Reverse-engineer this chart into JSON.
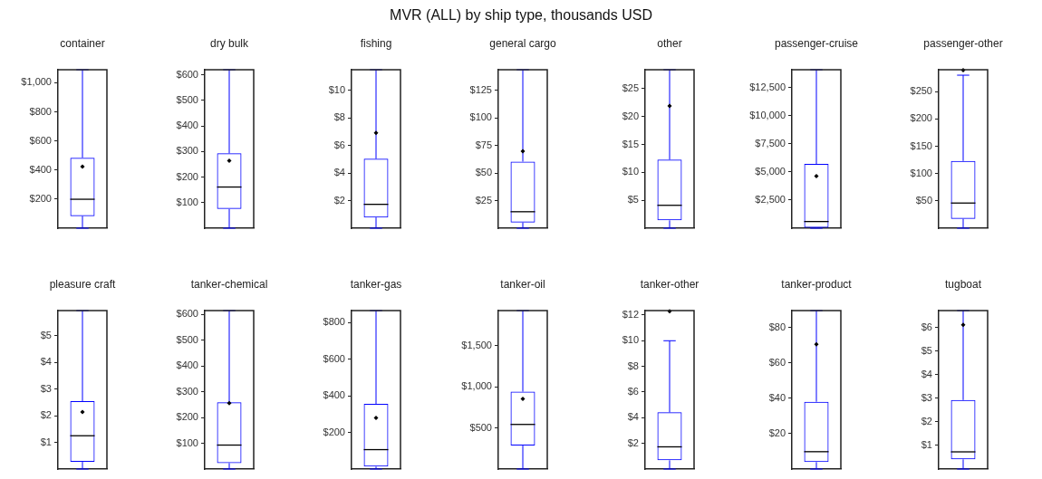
{
  "chart_data": [
    {
      "type": "box",
      "title": "container",
      "annotations": [
        "MVR (ALL) by ship type, thousands USD"
      ],
      "categories": [
        null
      ],
      "tick_labels": "y",
      "color": "#0000ff",
      "boxes": [
        {
          "low": 0,
          "q1": 83,
          "median": 199,
          "q3": 485,
          "high": 1090,
          "mean": 424
        }
      ],
      "ylim": [
        0,
        1090
      ],
      "yticks": [
        {
          "value": 200,
          "label": "$200"
        },
        {
          "value": 400,
          "label": "$400"
        },
        {
          "value": 600,
          "label": "$600"
        },
        {
          "value": 800,
          "label": "$800"
        },
        {
          "value": 1000,
          "label": "$1,000"
        }
      ]
    },
    {
      "type": "box",
      "title": "dry bulk",
      "categories": [
        null
      ],
      "tick_labels": "y",
      "color": "#0000ff",
      "boxes": [
        {
          "low": 0,
          "q1": 75,
          "median": 161,
          "q3": 293,
          "high": 620,
          "mean": 264
        }
      ],
      "ylim": [
        0,
        620
      ],
      "yticks": [
        {
          "value": 100,
          "label": "$100"
        },
        {
          "value": 200,
          "label": "$200"
        },
        {
          "value": 300,
          "label": "$300"
        },
        {
          "value": 400,
          "label": "$400"
        },
        {
          "value": 500,
          "label": "$500"
        },
        {
          "value": 600,
          "label": "$600"
        }
      ]
    },
    {
      "type": "box",
      "title": "fishing",
      "categories": [
        null
      ],
      "tick_labels": "y",
      "color": "#0000ff",
      "boxes": [
        {
          "low": 0,
          "q1": 0.78,
          "median": 1.73,
          "q3": 5.04,
          "high": 11.5,
          "mean": 6.92
        }
      ],
      "ylim": [
        0,
        11.5
      ],
      "yticks": [
        {
          "value": 2,
          "label": "$2"
        },
        {
          "value": 4,
          "label": "$4"
        },
        {
          "value": 6,
          "label": "$6"
        },
        {
          "value": 8,
          "label": "$8"
        },
        {
          "value": 10,
          "label": "$10"
        }
      ]
    },
    {
      "type": "box",
      "title": "general cargo",
      "categories": [
        null
      ],
      "tick_labels": "y",
      "color": "#0000ff",
      "boxes": [
        {
          "low": 0,
          "q1": 5.1,
          "median": 14.9,
          "q3": 60.3,
          "high": 143.5,
          "mean": 69.8
        }
      ],
      "ylim": [
        0,
        143.5
      ],
      "yticks": [
        {
          "value": 25,
          "label": "$25"
        },
        {
          "value": 50,
          "label": "$50"
        },
        {
          "value": 75,
          "label": "$75"
        },
        {
          "value": 100,
          "label": "$100"
        },
        {
          "value": 125,
          "label": "$125"
        }
      ]
    },
    {
      "type": "box",
      "title": "other",
      "categories": [
        null
      ],
      "tick_labels": "y",
      "color": "#0000ff",
      "boxes": [
        {
          "low": 0,
          "q1": 1.4,
          "median": 4.1,
          "q3": 12.3,
          "high": 28.4,
          "mean": 21.9
        }
      ],
      "ylim": [
        0,
        28.4
      ],
      "yticks": [
        {
          "value": 5,
          "label": "$5"
        },
        {
          "value": 10,
          "label": "$10"
        },
        {
          "value": 15,
          "label": "$15"
        },
        {
          "value": 20,
          "label": "$20"
        },
        {
          "value": 25,
          "label": "$25"
        }
      ]
    },
    {
      "type": "box",
      "title": "passenger-cruise",
      "categories": [
        null
      ],
      "tick_labels": "y",
      "color": "#0000ff",
      "boxes": [
        {
          "low": 0,
          "q1": 50,
          "median": 590,
          "q3": 5700,
          "high": 14070,
          "mean": 4620
        }
      ],
      "ylim": [
        0,
        14070
      ],
      "yticks": [
        {
          "value": 2500,
          "label": "$2,500"
        },
        {
          "value": 5000,
          "label": "$5,000"
        },
        {
          "value": 7500,
          "label": "$7,500"
        },
        {
          "value": 10000,
          "label": "$10,000"
        },
        {
          "value": 12500,
          "label": "$12,500"
        }
      ]
    },
    {
      "type": "box",
      "title": "passenger-other",
      "categories": [
        null
      ],
      "tick_labels": "y",
      "color": "#0000ff",
      "boxes": [
        {
          "low": 0,
          "q1": 17,
          "median": 46,
          "q3": 123,
          "high": 280,
          "mean": 289
        }
      ],
      "ylim": [
        0,
        290
      ],
      "yticks": [
        {
          "value": 50,
          "label": "$50"
        },
        {
          "value": 100,
          "label": "$100"
        },
        {
          "value": 150,
          "label": "$150"
        },
        {
          "value": 200,
          "label": "$200"
        },
        {
          "value": 250,
          "label": "$250"
        }
      ]
    },
    {
      "type": "box",
      "title": "pleasure craft",
      "categories": [
        null
      ],
      "tick_labels": "y",
      "color": "#0000ff",
      "boxes": [
        {
          "low": 0,
          "q1": 0.27,
          "median": 1.25,
          "q3": 2.55,
          "high": 5.95,
          "mean": 2.14
        }
      ],
      "ylim": [
        0,
        5.95
      ],
      "yticks": [
        {
          "value": 1,
          "label": "$1"
        },
        {
          "value": 2,
          "label": "$2"
        },
        {
          "value": 3,
          "label": "$3"
        },
        {
          "value": 4,
          "label": "$4"
        },
        {
          "value": 5,
          "label": "$5"
        }
      ]
    },
    {
      "type": "box",
      "title": "tanker-chemical",
      "categories": [
        null
      ],
      "tick_labels": "y",
      "color": "#0000ff",
      "boxes": [
        {
          "low": 0,
          "q1": 23,
          "median": 93,
          "q3": 259,
          "high": 615,
          "mean": 256
        }
      ],
      "ylim": [
        0,
        615
      ],
      "yticks": [
        {
          "value": 100,
          "label": "$100"
        },
        {
          "value": 200,
          "label": "$200"
        },
        {
          "value": 300,
          "label": "$300"
        },
        {
          "value": 400,
          "label": "$400"
        },
        {
          "value": 500,
          "label": "$500"
        },
        {
          "value": 600,
          "label": "$600"
        }
      ]
    },
    {
      "type": "box",
      "title": "tanker-gas",
      "categories": [
        null
      ],
      "tick_labels": "y",
      "color": "#0000ff",
      "boxes": [
        {
          "low": 0,
          "q1": 13,
          "median": 106,
          "q3": 356,
          "high": 865,
          "mean": 279
        }
      ],
      "ylim": [
        0,
        865
      ],
      "yticks": [
        {
          "value": 200,
          "label": "$200"
        },
        {
          "value": 400,
          "label": "$400"
        },
        {
          "value": 600,
          "label": "$600"
        },
        {
          "value": 800,
          "label": "$800"
        }
      ]
    },
    {
      "type": "box",
      "title": "tanker-oil",
      "categories": [
        null
      ],
      "tick_labels": "y",
      "color": "#0000ff",
      "boxes": [
        {
          "low": 0,
          "q1": 285,
          "median": 542,
          "q3": 940,
          "high": 1925,
          "mean": 852
        }
      ],
      "ylim": [
        0,
        1925
      ],
      "yticks": [
        {
          "value": 500,
          "label": "$500"
        },
        {
          "value": 1000,
          "label": "$1,000"
        },
        {
          "value": 1500,
          "label": "$1,500"
        }
      ]
    },
    {
      "type": "box",
      "title": "tanker-other",
      "categories": [
        null
      ],
      "tick_labels": "y",
      "color": "#0000ff",
      "boxes": [
        {
          "low": 0,
          "q1": 0.68,
          "median": 1.73,
          "q3": 4.42,
          "high": 10,
          "mean": 12.3
        }
      ],
      "ylim": [
        0,
        12.35
      ],
      "yticks": [
        {
          "value": 2,
          "label": "$2"
        },
        {
          "value": 4,
          "label": "$4"
        },
        {
          "value": 6,
          "label": "$6"
        },
        {
          "value": 8,
          "label": "$8"
        },
        {
          "value": 10,
          "label": "$10"
        },
        {
          "value": 12,
          "label": "$12"
        }
      ]
    },
    {
      "type": "box",
      "title": "tanker-product",
      "categories": [
        null
      ],
      "tick_labels": "y",
      "color": "#0000ff",
      "boxes": [
        {
          "low": 0,
          "q1": 3.9,
          "median": 9.8,
          "q3": 38,
          "high": 89.5,
          "mean": 70.5
        }
      ],
      "ylim": [
        0,
        89.5
      ],
      "yticks": [
        {
          "value": 20,
          "label": "$20"
        },
        {
          "value": 40,
          "label": "$40"
        },
        {
          "value": 60,
          "label": "$60"
        },
        {
          "value": 80,
          "label": "$80"
        }
      ]
    },
    {
      "type": "box",
      "title": "tugboat",
      "categories": [
        null
      ],
      "tick_labels": "y",
      "color": "#0000ff",
      "boxes": [
        {
          "low": 0,
          "q1": 0.41,
          "median": 0.73,
          "q3": 2.93,
          "high": 6.73,
          "mean": 6.12
        }
      ],
      "ylim": [
        0,
        6.73
      ],
      "yticks": [
        {
          "value": 1,
          "label": "$1"
        },
        {
          "value": 2,
          "label": "$2"
        },
        {
          "value": 3,
          "label": "$3"
        },
        {
          "value": 4,
          "label": "$4"
        },
        {
          "value": 5,
          "label": "$5"
        },
        {
          "value": 6,
          "label": "$6"
        }
      ]
    }
  ]
}
